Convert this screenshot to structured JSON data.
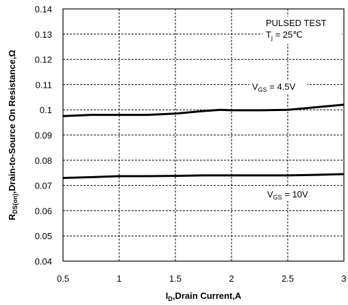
{
  "chart_data": {
    "type": "line",
    "x_ticks": [
      "0.5",
      "1",
      "1.5",
      "2",
      "2.5",
      "3"
    ],
    "y_ticks": [
      "0.04",
      "0.05",
      "0.06",
      "0.07",
      "0.08",
      "0.09",
      "0.1",
      "0.11",
      "0.12",
      "0.13",
      "0.14"
    ],
    "xlim": [
      0.5,
      3
    ],
    "ylim": [
      0.04,
      0.14
    ],
    "grid": true,
    "xlabel": {
      "main": "I",
      "sub": "D",
      "rest": ",Drain Current,A"
    },
    "ylabel": {
      "main": "R",
      "sub": "DS(on)",
      "rest": ",Drain-to-Source On Resistance,Ω"
    },
    "annotations": {
      "test_line1": "PULSED TEST",
      "test_line2_main": "T",
      "test_line2_sub": "j",
      "test_line2_rest": " = 25℃"
    },
    "series": [
      {
        "label_main": "V",
        "label_sub": "GS",
        "label_rest": " = 4.5V",
        "x": [
          0.5,
          0.75,
          1.0,
          1.25,
          1.5,
          1.75,
          1.9,
          2.0,
          2.25,
          2.5,
          2.75,
          3.0
        ],
        "y": [
          0.0975,
          0.098,
          0.098,
          0.098,
          0.0985,
          0.0995,
          0.1,
          0.0998,
          0.0998,
          0.1,
          0.101,
          0.102
        ]
      },
      {
        "label_main": "V",
        "label_sub": "GS",
        "label_rest": " = 10V",
        "x": [
          0.5,
          0.75,
          1.0,
          1.25,
          1.5,
          1.75,
          2.0,
          2.25,
          2.5,
          2.75,
          3.0
        ],
        "y": [
          0.073,
          0.0733,
          0.0737,
          0.0737,
          0.0738,
          0.074,
          0.074,
          0.074,
          0.074,
          0.0742,
          0.0745
        ]
      }
    ]
  }
}
